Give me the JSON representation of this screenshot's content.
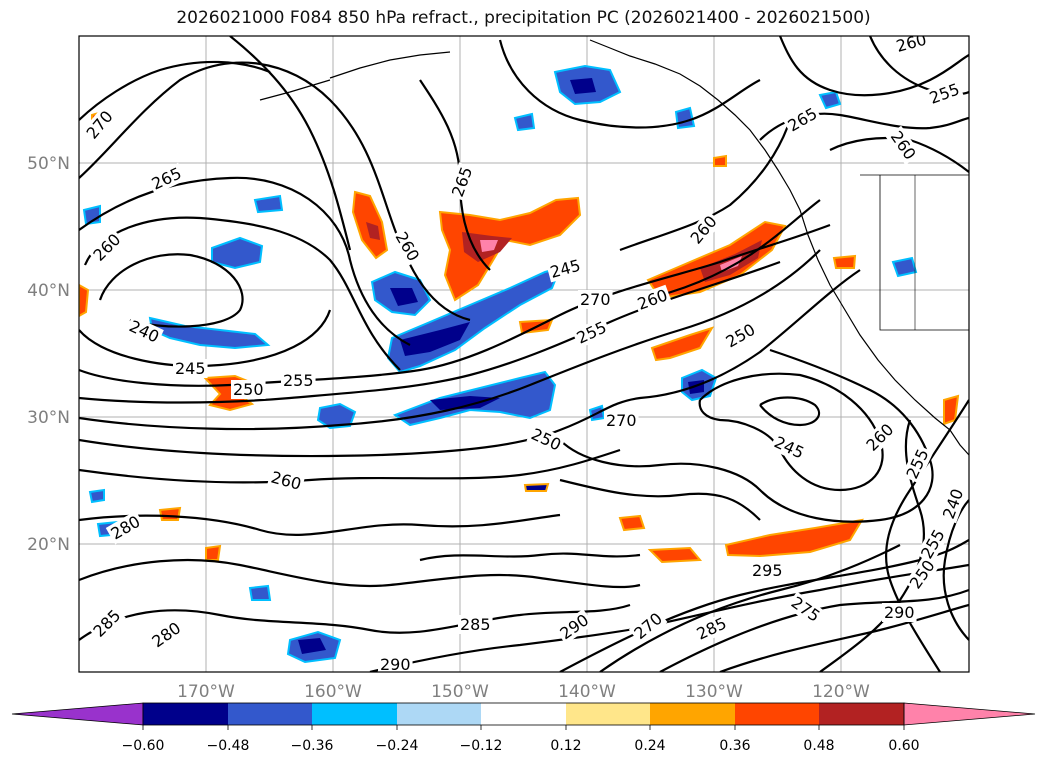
{
  "title": "2026021000 F084 850 hPa refract., precipitation PC (2026021400 - 2026021500)",
  "axes": {
    "lon_labels": [
      "170°W",
      "160°W",
      "150°W",
      "140°W",
      "130°W",
      "120°W"
    ],
    "lat_labels": [
      "50°N",
      "40°N",
      "30°N",
      "20°N"
    ]
  },
  "contour_labels": [
    "270",
    "265",
    "260",
    "260",
    "265",
    "270",
    "260",
    "255",
    "240",
    "245",
    "250",
    "255",
    "250",
    "270",
    "250",
    "245",
    "260",
    "265",
    "260",
    "280",
    "285",
    "280",
    "285",
    "290",
    "290",
    "270",
    "285",
    "295",
    "275",
    "290",
    "255",
    "250",
    "240",
    "245",
    "260",
    "255",
    "260",
    "260",
    "255"
  ],
  "colorbar": {
    "ticks": [
      "−0.60",
      "−0.48",
      "−0.36",
      "−0.24",
      "−0.12",
      "0.12",
      "0.24",
      "0.36",
      "0.48",
      "0.60"
    ],
    "colors": [
      "#9932cc",
      "#00008b",
      "#3358cc",
      "#00bfff",
      "#add8f5",
      "#ffffff",
      "#ffe68a",
      "#ffa500",
      "#ff4500",
      "#b22222",
      "#ff82aa"
    ]
  }
}
